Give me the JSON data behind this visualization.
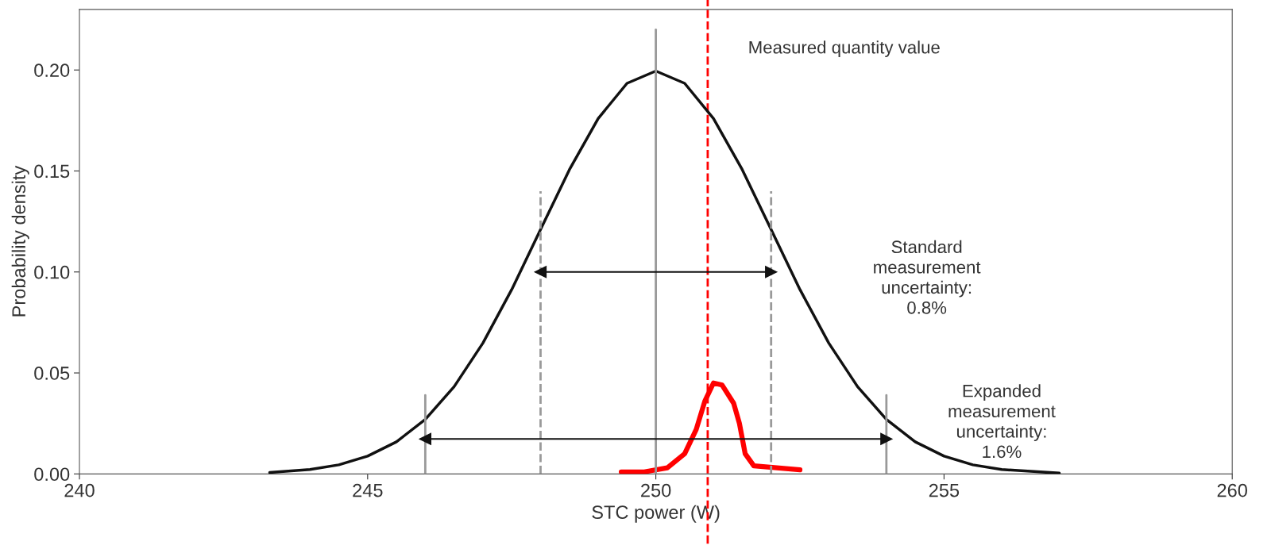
{
  "chart_data": {
    "type": "line",
    "xlabel": "STC power (W)",
    "ylabel": "Probability density",
    "xlim": [
      240,
      260
    ],
    "xticks": [
      240,
      245,
      250,
      255,
      260
    ],
    "ylim": [
      0,
      0.23
    ],
    "yticks": [
      {
        "value": 0,
        "label": "0.00"
      },
      0.05,
      {
        "value": 0.1,
        "label": "0.10"
      },
      0.15,
      {
        "value": 0.2,
        "label": "0.20"
      }
    ],
    "series": [
      {
        "color": "#111111",
        "x": [
          243.3,
          244,
          244.5,
          245,
          245.5,
          246,
          246.5,
          247,
          247.5,
          248,
          248.5,
          249,
          249.5,
          250,
          250.5,
          251,
          251.5,
          252,
          252.5,
          253,
          253.5,
          254,
          254.5,
          255,
          255.5,
          256,
          257.0
        ],
        "values": [
          0.0007,
          0.0022,
          0.0045,
          0.0088,
          0.0159,
          0.027,
          0.0432,
          0.0648,
          0.0913,
          0.121,
          0.1506,
          0.176,
          0.1934,
          0.1995,
          0.1934,
          0.176,
          0.1506,
          0.121,
          0.0913,
          0.0648,
          0.0432,
          0.027,
          0.0159,
          0.0088,
          0.0045,
          0.0022,
          0.0004
        ]
      },
      {
        "color": "#ff0000",
        "x": [
          249.4,
          249.8,
          250.2,
          250.5,
          250.7,
          250.85,
          251.0,
          251.15,
          251.35,
          251.45,
          251.55,
          251.7,
          252.5
        ],
        "values": [
          0.001,
          0.001,
          0.003,
          0.01,
          0.022,
          0.036,
          0.045,
          0.044,
          0.035,
          0.025,
          0.01,
          0.004,
          0.002
        ]
      },
      {
        "color": "#999999",
        "line_style": "solid",
        "x": [
          250,
          250
        ],
        "values": [
          0,
          0.22
        ]
      },
      {
        "color": "#999999",
        "line_style": "dashed",
        "x": [
          248,
          248
        ],
        "values": [
          0,
          0.14
        ]
      },
      {
        "color": "#999999",
        "line_style": "dashed",
        "x": [
          252,
          252
        ],
        "values": [
          0,
          0.14
        ]
      },
      {
        "color": "#999999",
        "line_style": "solid",
        "x": [
          246,
          246
        ],
        "values": [
          0,
          0.039
        ]
      },
      {
        "color": "#999999",
        "line_style": "solid",
        "x": [
          254,
          254
        ],
        "values": [
          0,
          0.039
        ]
      },
      {
        "color": "#111111",
        "marker": "triangle",
        "x": [
          248,
          252
        ],
        "values": [
          0.1,
          0.1
        ]
      },
      {
        "color": "#111111",
        "marker": "triangle",
        "x": [
          246,
          254
        ],
        "values": [
          0.0173,
          0.0173
        ]
      }
    ],
    "ref_lines": [
      {
        "axis": "x",
        "value": 250.9,
        "color": "#ff0000",
        "line_style": "dashed"
      }
    ],
    "annotations": [
      "Measured quantity value",
      "Standard\nmeasurement\nuncertainty:\n0.8%",
      "Expanded\nmeasurement\nuncertainty:\n1.6%"
    ]
  }
}
